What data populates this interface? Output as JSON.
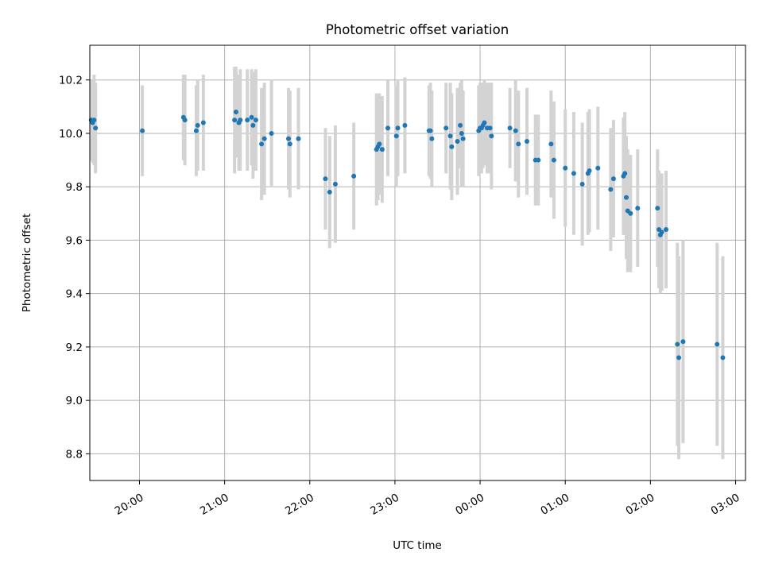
{
  "chart_data": {
    "type": "scatter",
    "title": "Photometric offset variation",
    "xlabel": "UTC time",
    "ylabel": "Photometric offset",
    "x_unit": "UTC time (HH:MM)",
    "xlim": [
      "19:25",
      "03:07"
    ],
    "ylim": [
      8.7,
      10.33
    ],
    "x_ticks": [
      "20:00",
      "21:00",
      "22:00",
      "23:00",
      "00:00",
      "01:00",
      "02:00",
      "03:00"
    ],
    "y_ticks": [
      "8.8",
      "9.0",
      "9.2",
      "9.4",
      "9.6",
      "9.8",
      "10.0",
      "10.2"
    ],
    "grid": true,
    "marker_color": "#1f77b4",
    "errorbar_color": "#d3d3d3",
    "series": [
      {
        "x": [
          "19:26",
          "19:27",
          "19:28",
          "19:29",
          "20:02",
          "20:31",
          "20:32",
          "20:40",
          "20:41",
          "20:45",
          "21:07",
          "21:08",
          "21:10",
          "21:11",
          "21:16",
          "21:19",
          "21:20",
          "21:22",
          "21:26",
          "21:28",
          "21:33",
          "21:45",
          "21:46",
          "21:52",
          "22:11",
          "22:14",
          "22:18",
          "22:31",
          "22:47",
          "22:48",
          "22:49",
          "22:51",
          "22:55",
          "23:01",
          "23:02",
          "23:07",
          "23:24",
          "23:25",
          "23:26",
          "23:36",
          "23:39",
          "23:40",
          "23:44",
          "23:46",
          "23:47",
          "23:48",
          "23:59",
          "24:00",
          "24:01",
          "24:02",
          "24:03",
          "24:05",
          "24:07",
          "24:08",
          "24:21",
          "24:25",
          "24:27",
          "24:33",
          "24:39",
          "24:41",
          "24:50",
          "24:52",
          "25:00",
          "25:06",
          "25:12",
          "25:16",
          "25:17",
          "25:23",
          "25:32",
          "25:34",
          "25:41",
          "25:42",
          "25:43",
          "25:44",
          "25:46",
          "25:51",
          "26:05",
          "26:06",
          "26:07",
          "26:08",
          "26:11",
          "26:19",
          "26:20",
          "26:23",
          "26:47",
          "26:51"
        ],
        "y": [
          10.05,
          10.04,
          10.05,
          10.02,
          10.01,
          10.06,
          10.05,
          10.01,
          10.03,
          10.04,
          10.05,
          10.08,
          10.04,
          10.05,
          10.05,
          10.06,
          10.03,
          10.05,
          9.96,
          9.98,
          10.0,
          9.98,
          9.96,
          9.98,
          9.83,
          9.78,
          9.81,
          9.84,
          9.94,
          9.95,
          9.96,
          9.94,
          10.02,
          9.99,
          10.02,
          10.03,
          10.01,
          10.01,
          9.98,
          10.02,
          9.99,
          9.95,
          9.97,
          10.03,
          10.0,
          9.98,
          10.01,
          10.02,
          10.02,
          10.03,
          10.04,
          10.02,
          10.02,
          9.99,
          10.02,
          10.01,
          9.96,
          9.97,
          9.9,
          9.9,
          9.96,
          9.9,
          9.87,
          9.85,
          9.81,
          9.85,
          9.86,
          9.87,
          9.79,
          9.83,
          9.84,
          9.85,
          9.76,
          9.71,
          9.7,
          9.72,
          9.72,
          9.64,
          9.62,
          9.63,
          9.64,
          9.21,
          9.16,
          9.22,
          9.21,
          9.16
        ],
        "yerr": [
          0.15,
          0.15,
          0.17,
          0.17,
          0.17,
          0.16,
          0.17,
          0.17,
          0.17,
          0.18,
          0.2,
          0.17,
          0.18,
          0.19,
          0.19,
          0.18,
          0.2,
          0.19,
          0.21,
          0.21,
          0.2,
          0.19,
          0.2,
          0.19,
          0.19,
          0.21,
          0.22,
          0.2,
          0.21,
          0.2,
          0.19,
          0.2,
          0.18,
          0.19,
          0.18,
          0.18,
          0.17,
          0.18,
          0.18,
          0.17,
          0.2,
          0.2,
          0.2,
          0.16,
          0.2,
          0.18,
          0.17,
          0.17,
          0.17,
          0.16,
          0.16,
          0.17,
          0.17,
          0.2,
          0.15,
          0.19,
          0.2,
          0.2,
          0.17,
          0.17,
          0.2,
          0.22,
          0.22,
          0.23,
          0.23,
          0.23,
          0.23,
          0.23,
          0.23,
          0.22,
          0.22,
          0.23,
          0.23,
          0.23,
          0.22,
          0.22,
          0.22,
          0.22,
          0.22,
          0.22,
          0.22,
          0.38,
          0.38,
          0.38,
          0.38,
          0.38
        ]
      }
    ]
  }
}
